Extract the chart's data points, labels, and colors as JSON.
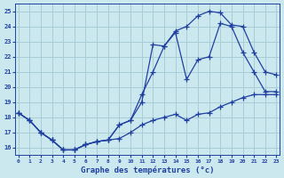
{
  "title": "Graphe des températures (°c)",
  "background_color": "#cce8ef",
  "grid_color": "#a8cdd6",
  "line_color": "#2040a0",
  "x_ticks": [
    0,
    1,
    2,
    3,
    4,
    5,
    6,
    7,
    8,
    9,
    10,
    11,
    12,
    13,
    14,
    15,
    16,
    17,
    18,
    19,
    20,
    21,
    22,
    23
  ],
  "y_ticks": [
    16,
    17,
    18,
    19,
    20,
    21,
    22,
    23,
    24,
    25
  ],
  "xlim": [
    -0.3,
    23.3
  ],
  "ylim": [
    15.5,
    25.5
  ],
  "line1_x": [
    0,
    1,
    2,
    3,
    4,
    5,
    6,
    7,
    8,
    9,
    10,
    11,
    12,
    13,
    14,
    15,
    16,
    17,
    18,
    19,
    20,
    21,
    22,
    23
  ],
  "line1_y": [
    18.3,
    17.8,
    17.0,
    16.5,
    15.85,
    15.85,
    16.2,
    16.4,
    16.5,
    16.6,
    17.0,
    17.5,
    17.8,
    18.0,
    18.2,
    17.8,
    18.2,
    18.3,
    18.7,
    19.0,
    19.3,
    19.5,
    19.5,
    19.5
  ],
  "line2_x": [
    0,
    1,
    2,
    3,
    4,
    5,
    6,
    7,
    8,
    9,
    10,
    11,
    12,
    13,
    14,
    15,
    16,
    17,
    18,
    19,
    20,
    21,
    22,
    23
  ],
  "line2_y": [
    18.3,
    17.8,
    17.0,
    16.5,
    15.85,
    15.85,
    16.2,
    16.4,
    16.5,
    17.5,
    17.8,
    19.0,
    22.8,
    22.7,
    23.6,
    20.5,
    21.8,
    22.0,
    24.2,
    24.0,
    22.3,
    21.0,
    19.7,
    19.7
  ],
  "line3_x": [
    0,
    1,
    2,
    3,
    4,
    5,
    6,
    7,
    8,
    9,
    10,
    11,
    12,
    13,
    14,
    15,
    16,
    17,
    18,
    19,
    20,
    21,
    22,
    23
  ],
  "line3_y": [
    18.3,
    17.8,
    17.0,
    16.5,
    15.85,
    15.85,
    16.2,
    16.4,
    16.5,
    17.5,
    17.8,
    19.5,
    21.0,
    22.7,
    23.7,
    24.0,
    24.7,
    25.0,
    24.9,
    24.1,
    24.0,
    22.3,
    21.0,
    20.8
  ],
  "marker_style": "+",
  "marker_size": 4,
  "line_width": 0.9
}
